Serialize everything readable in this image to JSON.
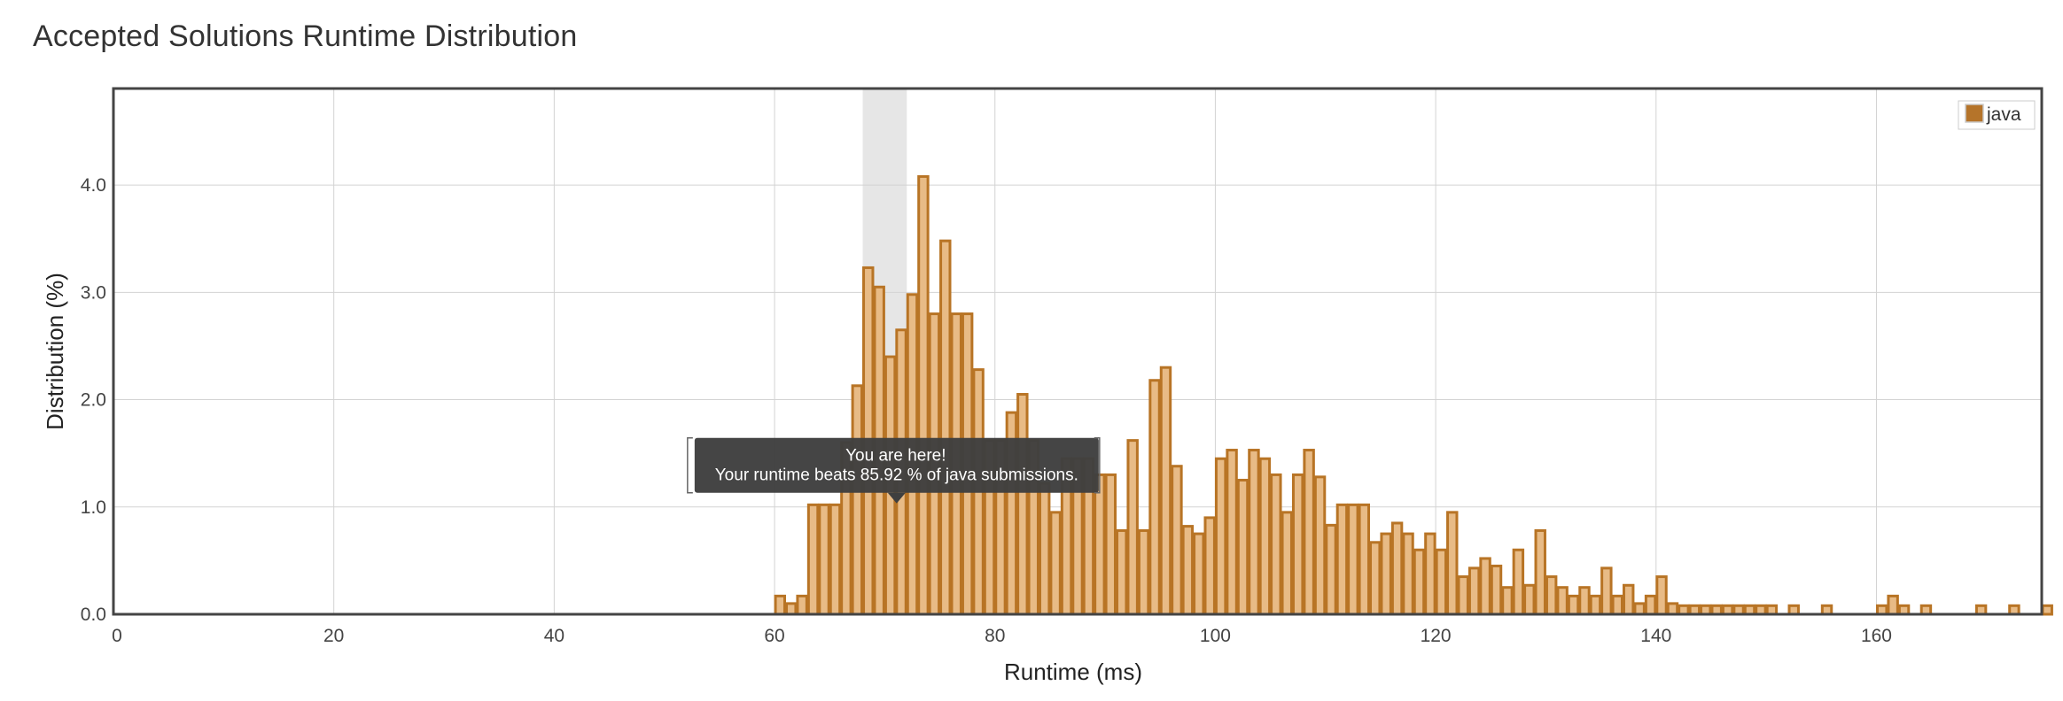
{
  "page": {
    "title": "Accepted Solutions Runtime Distribution"
  },
  "colors": {
    "bar_fill": "#e8bb86",
    "bar_stroke": "#b87425",
    "legend_swatch": "#b5742a",
    "highlight_band": "#e6e6e6",
    "grid": "#d3d3d3",
    "frame": "#444444",
    "tooltip_bg": "#3f3f3f"
  },
  "chart_data": {
    "type": "bar",
    "xlabel": "Runtime (ms)",
    "ylabel": "Distribution (%)",
    "xlim": [
      0,
      175
    ],
    "ylim": [
      0,
      4.9
    ],
    "xticks": [
      0,
      20,
      40,
      60,
      80,
      100,
      120,
      140,
      160
    ],
    "yticks": [
      0.0,
      1.0,
      2.0,
      3.0,
      4.0
    ],
    "ytick_labels": [
      "0.0",
      "1.0",
      "2.0",
      "3.0",
      "4.0"
    ],
    "grid": true,
    "legend": {
      "position": "top-right",
      "entries": [
        "java"
      ]
    },
    "series": [
      {
        "name": "java",
        "bin_width": 1,
        "x": [
          60,
          61,
          62,
          63,
          64,
          65,
          66,
          67,
          68,
          69,
          70,
          71,
          72,
          73,
          74,
          75,
          76,
          77,
          78,
          79,
          80,
          81,
          82,
          83,
          84,
          85,
          86,
          87,
          88,
          89,
          90,
          91,
          92,
          93,
          94,
          95,
          96,
          97,
          98,
          99,
          100,
          101,
          102,
          103,
          104,
          105,
          106,
          107,
          108,
          109,
          110,
          111,
          112,
          113,
          114,
          115,
          116,
          117,
          118,
          119,
          120,
          121,
          122,
          123,
          124,
          125,
          126,
          127,
          128,
          129,
          130,
          131,
          132,
          133,
          134,
          135,
          136,
          137,
          138,
          139,
          140,
          141,
          142,
          143,
          144,
          145,
          146,
          147,
          148,
          149,
          150,
          152,
          155,
          160,
          161,
          162,
          164,
          169,
          172,
          175
        ],
        "values": [
          0.17,
          0.1,
          0.17,
          1.02,
          1.02,
          1.02,
          1.6,
          2.13,
          3.23,
          3.05,
          2.4,
          2.65,
          2.98,
          4.08,
          2.8,
          3.48,
          2.8,
          2.8,
          2.28,
          1.62,
          1.62,
          1.88,
          2.05,
          1.62,
          1.22,
          0.95,
          1.45,
          1.45,
          1.45,
          1.3,
          1.3,
          0.78,
          1.62,
          0.78,
          2.18,
          2.3,
          1.38,
          0.82,
          0.75,
          0.9,
          1.45,
          1.53,
          1.25,
          1.53,
          1.45,
          1.3,
          0.95,
          1.3,
          1.53,
          1.28,
          0.83,
          1.02,
          1.02,
          1.02,
          0.67,
          0.75,
          0.85,
          0.75,
          0.6,
          0.75,
          0.6,
          0.95,
          0.35,
          0.43,
          0.52,
          0.45,
          0.25,
          0.6,
          0.27,
          0.78,
          0.35,
          0.25,
          0.17,
          0.25,
          0.17,
          0.43,
          0.17,
          0.27,
          0.1,
          0.17,
          0.35,
          0.1,
          0.08,
          0.08,
          0.08,
          0.08,
          0.08,
          0.08,
          0.08,
          0.08,
          0.08,
          0.08,
          0.08,
          0.08,
          0.17,
          0.08,
          0.08,
          0.08,
          0.08,
          0.08
        ]
      }
    ],
    "highlight_range": [
      68,
      72
    ],
    "tooltip": {
      "line1": "You are here!",
      "line2": "Your runtime beats 85.92 % of java submissions.",
      "anchor_x": 71,
      "anchor_y": 1.05
    }
  }
}
